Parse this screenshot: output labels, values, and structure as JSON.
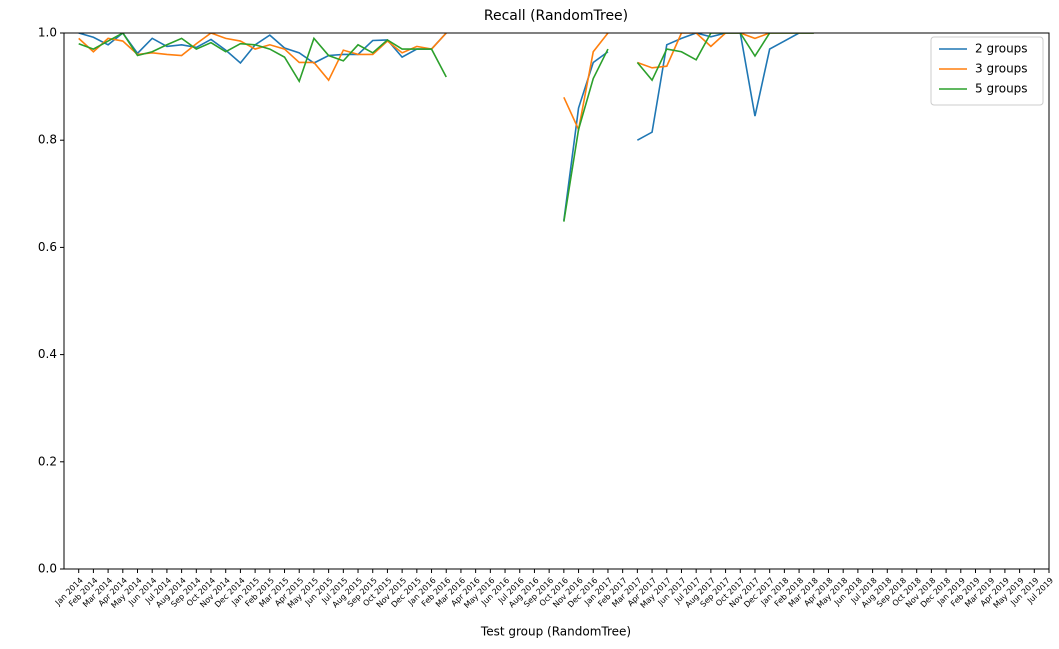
{
  "chart_data": {
    "type": "line",
    "title": "Recall (RandomTree)",
    "x_label": "Test group (RandomTree)",
    "categories": [
      "Jan 2014",
      "Feb 2014",
      "Mar 2014",
      "Apr 2014",
      "May 2014",
      "Jun 2014",
      "Jul 2014",
      "Aug 2014",
      "Sep 2014",
      "Oct 2014",
      "Nov 2014",
      "Dec 2014",
      "Jan 2015",
      "Feb 2015",
      "Mar 2015",
      "Apr 2015",
      "May 2015",
      "Jun 2015",
      "Jul 2015",
      "Aug 2015",
      "Sep 2015",
      "Oct 2015",
      "Nov 2015",
      "Dec 2015",
      "Jan 2016",
      "Feb 2016",
      "Mar 2016",
      "Apr 2016",
      "May 2016",
      "Jun 2016",
      "Jul 2016",
      "Aug 2016",
      "Sep 2016",
      "Oct 2016",
      "Nov 2016",
      "Dec 2016",
      "Jan 2017",
      "Feb 2017",
      "Mar 2017",
      "Apr 2017",
      "May 2017",
      "Jun 2017",
      "Jul 2017",
      "Aug 2017",
      "Sep 2017",
      "Oct 2017",
      "Nov 2017",
      "Dec 2017",
      "Jan 2018",
      "Feb 2018",
      "Mar 2018",
      "Apr 2018",
      "May 2018",
      "Jun 2018",
      "Jul 2018",
      "Aug 2018",
      "Sep 2018",
      "Oct 2018",
      "Nov 2018",
      "Dec 2018",
      "Jan 2019",
      "Feb 2019",
      "Mar 2019",
      "Apr 2019",
      "May 2019",
      "Jun 2019",
      "Jul 2019"
    ],
    "series": [
      {
        "name": "2 groups",
        "color": "#1f77b4",
        "values": [
          1.0,
          0.992,
          0.978,
          1.0,
          0.962,
          0.99,
          0.975,
          0.978,
          0.973,
          0.988,
          0.968,
          0.944,
          0.978,
          0.996,
          0.972,
          0.963,
          0.944,
          0.958,
          0.96,
          0.96,
          0.986,
          0.987,
          0.955,
          0.97,
          0.97,
          1.0,
          null,
          null,
          null,
          null,
          null,
          null,
          null,
          0.65,
          0.86,
          0.945,
          0.965,
          null,
          0.8,
          0.815,
          0.978,
          0.99,
          1.0,
          0.993,
          1.0,
          1.0,
          0.845,
          0.97,
          0.985,
          1.0,
          1.0,
          null,
          null,
          null,
          null,
          null,
          null,
          null,
          null,
          null,
          null,
          null,
          null,
          null,
          null,
          null,
          null
        ]
      },
      {
        "name": "3 groups",
        "color": "#ff7f0e",
        "values": [
          0.99,
          0.965,
          0.99,
          0.985,
          0.96,
          0.963,
          0.96,
          0.958,
          0.98,
          1.0,
          0.99,
          0.985,
          0.97,
          0.978,
          0.97,
          0.945,
          0.945,
          0.912,
          0.968,
          0.96,
          0.96,
          0.985,
          0.963,
          0.975,
          0.97,
          1.0,
          null,
          null,
          null,
          null,
          null,
          null,
          null,
          0.88,
          0.82,
          0.965,
          1.0,
          null,
          0.945,
          0.935,
          0.938,
          1.0,
          1.0,
          0.975,
          1.0,
          1.0,
          0.99,
          1.0,
          1.0,
          1.0,
          1.0,
          null,
          null,
          null,
          null,
          null,
          null,
          null,
          null,
          null,
          null,
          null,
          null,
          null,
          null,
          null,
          null
        ]
      },
      {
        "name": "5 groups",
        "color": "#2ca02c",
        "values": [
          0.98,
          0.97,
          0.985,
          1.0,
          0.958,
          0.965,
          0.978,
          0.99,
          0.97,
          0.982,
          0.965,
          0.98,
          0.978,
          0.97,
          0.955,
          0.91,
          0.99,
          0.958,
          0.948,
          0.978,
          0.963,
          0.987,
          0.97,
          0.97,
          0.97,
          0.918,
          null,
          null,
          null,
          null,
          null,
          null,
          null,
          0.648,
          0.82,
          0.915,
          0.97,
          null,
          0.945,
          0.912,
          0.97,
          0.965,
          0.95,
          1.0,
          1.0,
          1.0,
          0.957,
          1.0,
          1.0,
          1.0,
          1.0,
          null,
          null,
          null,
          null,
          null,
          null,
          null,
          null,
          null,
          null,
          null,
          null,
          null,
          null,
          null,
          null
        ]
      }
    ],
    "ylim": [
      0,
      1.0
    ],
    "yticks": [
      {
        "value": 0,
        "label": "0.0"
      },
      0.2,
      0.4,
      0.6,
      0.8,
      {
        "value": 1.0,
        "label": "1.0"
      }
    ],
    "legend": "upper right",
    "grid": false
  }
}
